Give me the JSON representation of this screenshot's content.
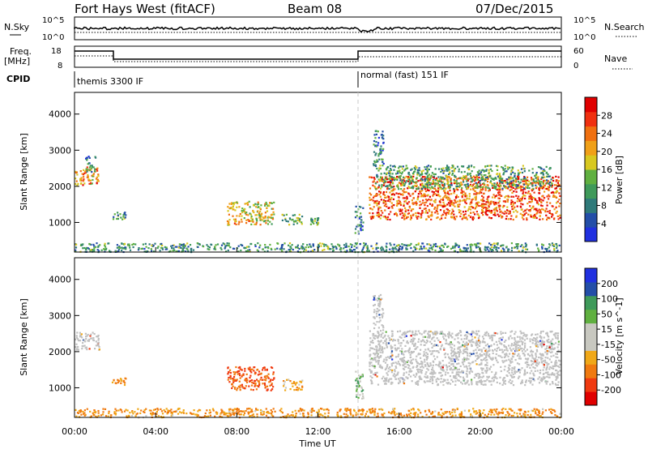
{
  "header": {
    "title": "Fort Hays West (fitACF)",
    "beam": "Beam 08",
    "date": "07/Dec/2015"
  },
  "status_panels": {
    "nsky_label": "N.Sky",
    "nsky_ticks": [
      "10^5",
      "10^0"
    ],
    "nsearch_label": "N.Search",
    "nsearch_ticks": [
      "10^5",
      "10^0"
    ],
    "freq_label": "Freq.",
    "freq_unit": "[MHz]",
    "freq_ticks": [
      "18",
      "8"
    ],
    "nave_label": "Nave",
    "nave_ticks": [
      "60",
      "0"
    ],
    "cpid_label": "CPID",
    "cpid_segments": [
      "themis 3300 IF",
      "normal (fast) 151 IF"
    ]
  },
  "colors": {
    "power": [
      "#2030e0",
      "#234ea8",
      "#2f7a7a",
      "#3f9a5a",
      "#60b040",
      "#d8c820",
      "#f0a018",
      "#f07010",
      "#f03010",
      "#e00000"
    ],
    "velocity": [
      "#e00000",
      "#f03a10",
      "#f07a10",
      "#f0a818",
      "#c8c8c0",
      "#c8c8c0",
      "#60b040",
      "#3f9a5a",
      "#234ea8",
      "#2030e0"
    ],
    "ground_scatter": "#c0c0c0"
  },
  "chart_data": [
    {
      "type": "heatmap",
      "panel": "power",
      "ylabel": "Slant Range [km]",
      "yticks": [
        "1000",
        "2000",
        "3000",
        "4000"
      ],
      "ylim": [
        180,
        4600
      ],
      "xlim": [
        0,
        24
      ],
      "colorbar_label": "Power [dB]",
      "colorbar_ticks": [
        "4",
        "8",
        "12",
        "16",
        "20",
        "24",
        "28"
      ],
      "clim": [
        0,
        32
      ],
      "patches": [
        {
          "t0": 0.0,
          "t1": 1.2,
          "r0": 2050,
          "r1": 2550,
          "p": 22
        },
        {
          "t0": 0.5,
          "t1": 1.0,
          "r0": 2400,
          "r1": 2850,
          "p": 9
        },
        {
          "t0": 1.8,
          "t1": 2.5,
          "r0": 1100,
          "r1": 1300,
          "p": 10
        },
        {
          "t0": 7.5,
          "t1": 9.8,
          "r0": 950,
          "r1": 1600,
          "p": 19
        },
        {
          "t0": 10.2,
          "t1": 11.2,
          "r0": 950,
          "r1": 1250,
          "p": 14
        },
        {
          "t0": 11.6,
          "t1": 12.0,
          "r0": 950,
          "r1": 1150,
          "p": 12
        },
        {
          "t0": 13.8,
          "t1": 14.2,
          "r0": 700,
          "r1": 1500,
          "p": 8
        },
        {
          "t0": 14.5,
          "t1": 23.9,
          "r0": 1100,
          "r1": 2300,
          "p": 25
        },
        {
          "t0": 14.8,
          "t1": 23.5,
          "r0": 1950,
          "r1": 2600,
          "p": 12
        },
        {
          "t0": 14.7,
          "t1": 15.2,
          "r0": 2600,
          "r1": 3600,
          "p": 9
        },
        {
          "t0": 0.0,
          "t1": 23.9,
          "r0": 200,
          "r1": 450,
          "p": 10
        }
      ]
    },
    {
      "type": "heatmap",
      "panel": "velocity",
      "ylabel": "Slant Range [km]",
      "yticks": [
        "1000",
        "2000",
        "3000",
        "4000"
      ],
      "ylim": [
        180,
        4600
      ],
      "xlim": [
        0,
        24
      ],
      "xlabel": "Time UT",
      "xticks": [
        "00:00",
        "04:00",
        "08:00",
        "12:00",
        "16:00",
        "20:00",
        "00:00"
      ],
      "colorbar_label": "Velocity [m s^-1]",
      "colorbar_ticks": [
        "-200",
        "-100",
        "-50",
        "-15",
        "15",
        "50",
        "100",
        "200"
      ],
      "patches": [
        {
          "t0": 0.0,
          "t1": 1.2,
          "r0": 2050,
          "r1": 2550,
          "v": "gs"
        },
        {
          "t0": 1.8,
          "t1": 2.5,
          "r0": 1100,
          "r1": 1300,
          "v": -60
        },
        {
          "t0": 7.5,
          "t1": 9.8,
          "r0": 950,
          "r1": 1600,
          "v": -110
        },
        {
          "t0": 10.2,
          "t1": 11.2,
          "r0": 950,
          "r1": 1250,
          "v": -40
        },
        {
          "t0": 13.8,
          "t1": 14.2,
          "r0": 700,
          "r1": 1500,
          "v": 30
        },
        {
          "t0": 14.5,
          "t1": 23.9,
          "r0": 1100,
          "r1": 2600,
          "v": "gs"
        },
        {
          "t0": 14.7,
          "t1": 15.2,
          "r0": 2600,
          "r1": 3600,
          "v": "gs"
        },
        {
          "t0": 0.0,
          "t1": 23.9,
          "r0": 200,
          "r1": 450,
          "v": -50
        }
      ]
    }
  ]
}
